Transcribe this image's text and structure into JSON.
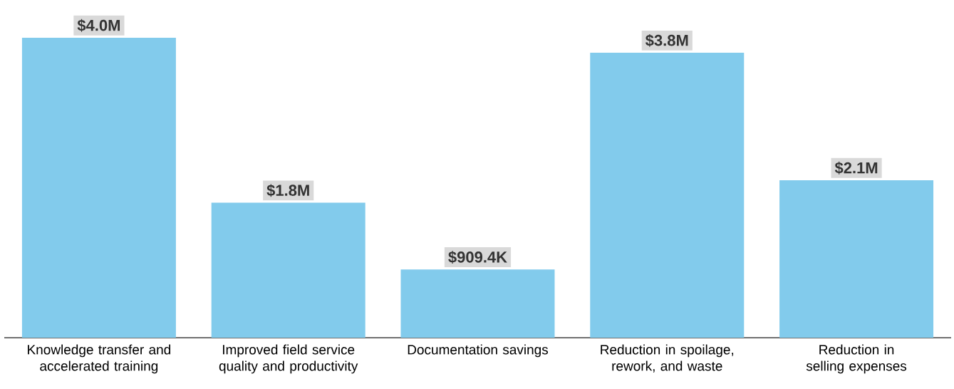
{
  "chart_data": {
    "type": "bar",
    "categories": [
      "Knowledge transfer and accelerated training",
      "Improved field service quality and productivity",
      "Documentation savings",
      "Reduction in spoilage, rework, and waste",
      "Reduction in selling expenses"
    ],
    "values": [
      4000000,
      1800000,
      909400,
      3800000,
      2100000
    ],
    "value_labels": [
      "$4.0M",
      "$1.8M",
      "$909.4K",
      "$3.8M",
      "$2.1M"
    ],
    "color": "#82cbec"
  }
}
